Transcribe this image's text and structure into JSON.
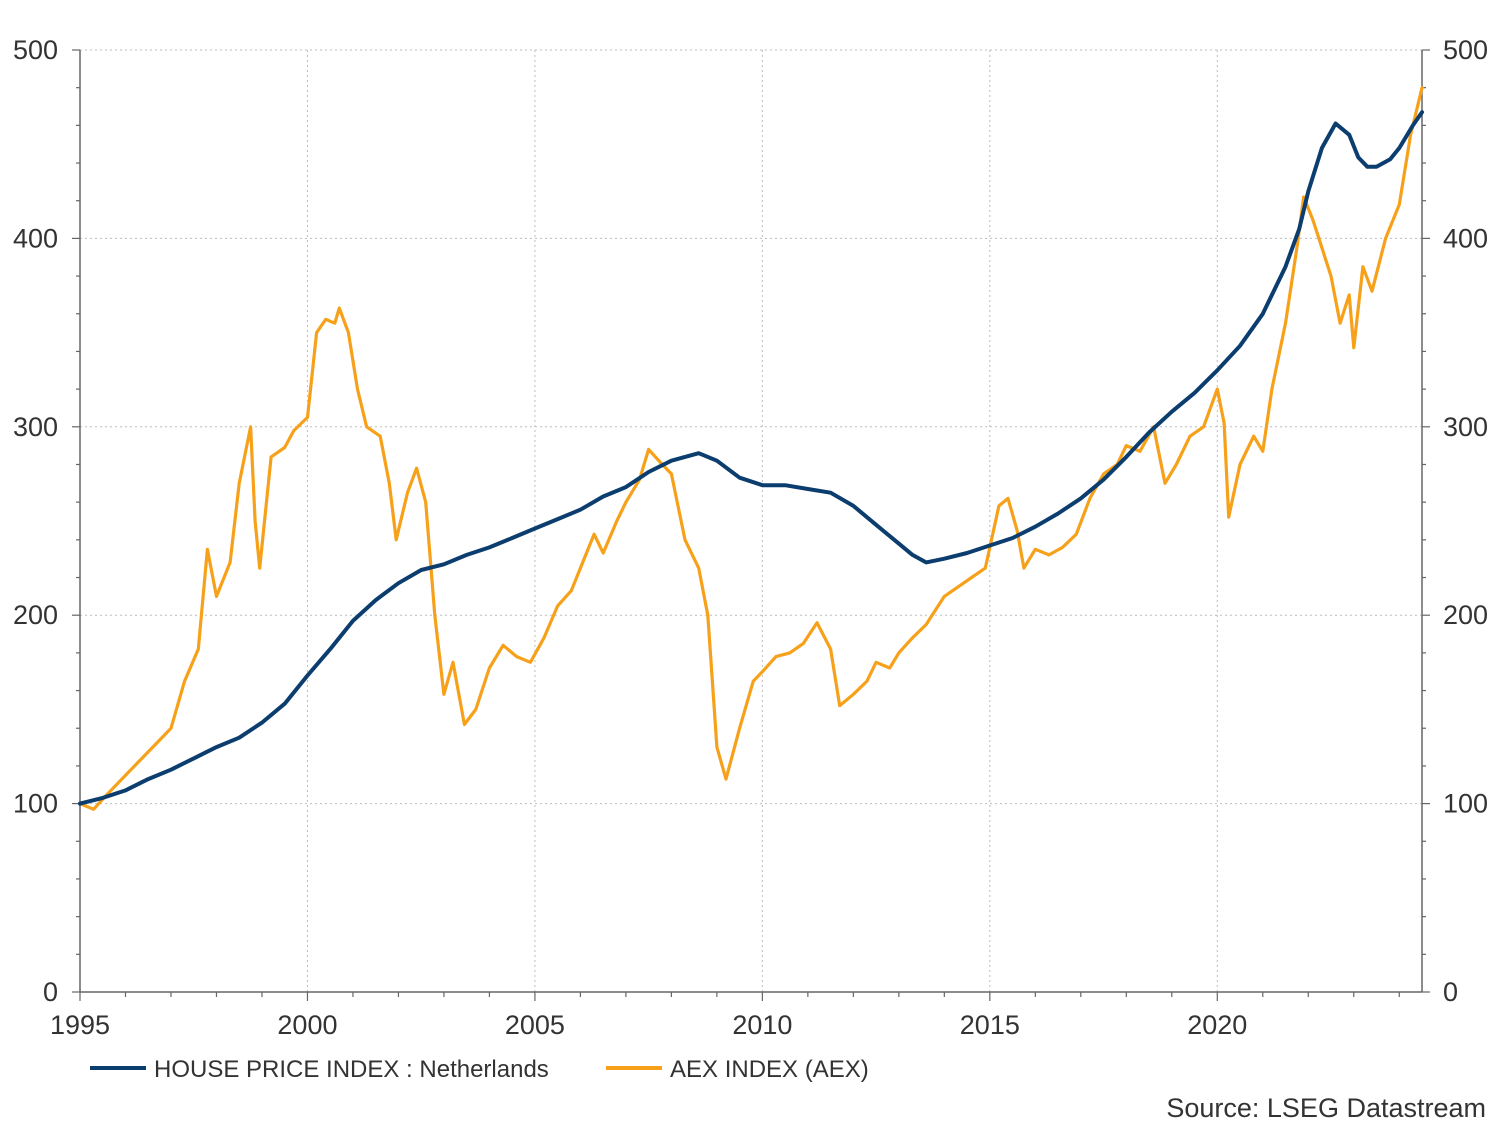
{
  "chart_data": {
    "type": "line",
    "xlim": [
      1995,
      2024.5
    ],
    "ylim": [
      0,
      500
    ],
    "x_ticks": [
      1995,
      2000,
      2005,
      2010,
      2015,
      2020
    ],
    "x_tick_labels": [
      "1995",
      "2000",
      "2005",
      "2010",
      "2015",
      "2020"
    ],
    "y_ticks": [
      0,
      100,
      200,
      300,
      400,
      500
    ],
    "y_tick_labels": [
      "0",
      "100",
      "200",
      "300",
      "400",
      "500"
    ],
    "y_axis_right": true,
    "grid": true,
    "legend_position": "bottom",
    "source": "Source: LSEG Datastream",
    "series": [
      {
        "name": "HOUSE PRICE INDEX : Netherlands",
        "color": "#0b3d6e",
        "points": [
          [
            1995.0,
            100
          ],
          [
            1995.5,
            103
          ],
          [
            1996.0,
            107
          ],
          [
            1996.5,
            113
          ],
          [
            1997.0,
            118
          ],
          [
            1997.5,
            124
          ],
          [
            1998.0,
            130
          ],
          [
            1998.5,
            135
          ],
          [
            1999.0,
            143
          ],
          [
            1999.5,
            153
          ],
          [
            2000.0,
            168
          ],
          [
            2000.5,
            182
          ],
          [
            2001.0,
            197
          ],
          [
            2001.5,
            208
          ],
          [
            2002.0,
            217
          ],
          [
            2002.5,
            224
          ],
          [
            2003.0,
            227
          ],
          [
            2003.5,
            232
          ],
          [
            2004.0,
            236
          ],
          [
            2004.5,
            241
          ],
          [
            2005.0,
            246
          ],
          [
            2005.5,
            251
          ],
          [
            2006.0,
            256
          ],
          [
            2006.5,
            263
          ],
          [
            2007.0,
            268
          ],
          [
            2007.5,
            276
          ],
          [
            2008.0,
            282
          ],
          [
            2008.6,
            286
          ],
          [
            2009.0,
            282
          ],
          [
            2009.5,
            273
          ],
          [
            2010.0,
            269
          ],
          [
            2010.5,
            269
          ],
          [
            2011.0,
            267
          ],
          [
            2011.5,
            265
          ],
          [
            2012.0,
            258
          ],
          [
            2012.5,
            248
          ],
          [
            2013.0,
            238
          ],
          [
            2013.3,
            232
          ],
          [
            2013.6,
            228
          ],
          [
            2014.0,
            230
          ],
          [
            2014.5,
            233
          ],
          [
            2015.0,
            237
          ],
          [
            2015.5,
            241
          ],
          [
            2016.0,
            247
          ],
          [
            2016.5,
            254
          ],
          [
            2017.0,
            262
          ],
          [
            2017.5,
            272
          ],
          [
            2018.0,
            284
          ],
          [
            2018.5,
            297
          ],
          [
            2019.0,
            308
          ],
          [
            2019.5,
            318
          ],
          [
            2020.0,
            330
          ],
          [
            2020.5,
            343
          ],
          [
            2021.0,
            360
          ],
          [
            2021.5,
            385
          ],
          [
            2021.8,
            405
          ],
          [
            2022.0,
            425
          ],
          [
            2022.3,
            448
          ],
          [
            2022.6,
            461
          ],
          [
            2022.9,
            455
          ],
          [
            2023.1,
            443
          ],
          [
            2023.3,
            438
          ],
          [
            2023.5,
            438
          ],
          [
            2023.8,
            442
          ],
          [
            2024.0,
            448
          ],
          [
            2024.3,
            460
          ],
          [
            2024.5,
            467
          ]
        ]
      },
      {
        "name": "AEX INDEX (AEX)",
        "color": "#f7a11a",
        "points": [
          [
            1995.0,
            100
          ],
          [
            1995.3,
            97
          ],
          [
            1995.6,
            105
          ],
          [
            1996.0,
            115
          ],
          [
            1996.4,
            125
          ],
          [
            1996.8,
            135
          ],
          [
            1997.0,
            140
          ],
          [
            1997.3,
            165
          ],
          [
            1997.6,
            182
          ],
          [
            1997.8,
            235
          ],
          [
            1998.0,
            210
          ],
          [
            1998.3,
            228
          ],
          [
            1998.5,
            270
          ],
          [
            1998.75,
            300
          ],
          [
            1998.85,
            250
          ],
          [
            1998.95,
            225
          ],
          [
            1999.2,
            284
          ],
          [
            1999.5,
            289
          ],
          [
            1999.7,
            298
          ],
          [
            2000.0,
            305
          ],
          [
            2000.2,
            350
          ],
          [
            2000.4,
            357
          ],
          [
            2000.6,
            355
          ],
          [
            2000.7,
            363
          ],
          [
            2000.9,
            350
          ],
          [
            2001.1,
            320
          ],
          [
            2001.3,
            300
          ],
          [
            2001.6,
            295
          ],
          [
            2001.8,
            270
          ],
          [
            2001.95,
            240
          ],
          [
            2002.2,
            265
          ],
          [
            2002.4,
            278
          ],
          [
            2002.6,
            260
          ],
          [
            2002.8,
            200
          ],
          [
            2003.0,
            158
          ],
          [
            2003.2,
            175
          ],
          [
            2003.45,
            142
          ],
          [
            2003.7,
            150
          ],
          [
            2004.0,
            172
          ],
          [
            2004.3,
            184
          ],
          [
            2004.6,
            178
          ],
          [
            2004.9,
            175
          ],
          [
            2005.2,
            188
          ],
          [
            2005.5,
            205
          ],
          [
            2005.8,
            213
          ],
          [
            2006.0,
            225
          ],
          [
            2006.3,
            243
          ],
          [
            2006.5,
            233
          ],
          [
            2006.8,
            250
          ],
          [
            2007.0,
            260
          ],
          [
            2007.3,
            272
          ],
          [
            2007.5,
            288
          ],
          [
            2007.8,
            280
          ],
          [
            2008.0,
            275
          ],
          [
            2008.3,
            240
          ],
          [
            2008.6,
            225
          ],
          [
            2008.8,
            200
          ],
          [
            2009.0,
            130
          ],
          [
            2009.2,
            113
          ],
          [
            2009.5,
            140
          ],
          [
            2009.8,
            165
          ],
          [
            2010.0,
            170
          ],
          [
            2010.3,
            178
          ],
          [
            2010.6,
            180
          ],
          [
            2010.9,
            185
          ],
          [
            2011.2,
            196
          ],
          [
            2011.5,
            182
          ],
          [
            2011.7,
            152
          ],
          [
            2012.0,
            158
          ],
          [
            2012.3,
            165
          ],
          [
            2012.5,
            175
          ],
          [
            2012.8,
            172
          ],
          [
            2013.0,
            180
          ],
          [
            2013.3,
            188
          ],
          [
            2013.6,
            195
          ],
          [
            2014.0,
            210
          ],
          [
            2014.3,
            215
          ],
          [
            2014.6,
            220
          ],
          [
            2014.9,
            225
          ],
          [
            2015.2,
            258
          ],
          [
            2015.4,
            262
          ],
          [
            2015.6,
            245
          ],
          [
            2015.75,
            225
          ],
          [
            2016.0,
            235
          ],
          [
            2016.3,
            232
          ],
          [
            2016.6,
            236
          ],
          [
            2016.9,
            243
          ],
          [
            2017.2,
            262
          ],
          [
            2017.5,
            275
          ],
          [
            2017.8,
            280
          ],
          [
            2018.0,
            290
          ],
          [
            2018.3,
            287
          ],
          [
            2018.6,
            300
          ],
          [
            2018.85,
            270
          ],
          [
            2019.1,
            280
          ],
          [
            2019.4,
            295
          ],
          [
            2019.7,
            300
          ],
          [
            2020.0,
            320
          ],
          [
            2020.15,
            302
          ],
          [
            2020.25,
            252
          ],
          [
            2020.5,
            280
          ],
          [
            2020.8,
            295
          ],
          [
            2021.0,
            287
          ],
          [
            2021.2,
            320
          ],
          [
            2021.5,
            355
          ],
          [
            2021.75,
            395
          ],
          [
            2021.9,
            422
          ],
          [
            2022.1,
            410
          ],
          [
            2022.3,
            395
          ],
          [
            2022.5,
            380
          ],
          [
            2022.7,
            355
          ],
          [
            2022.9,
            370
          ],
          [
            2023.0,
            342
          ],
          [
            2023.2,
            385
          ],
          [
            2023.4,
            372
          ],
          [
            2023.7,
            400
          ],
          [
            2024.0,
            418
          ],
          [
            2024.25,
            455
          ],
          [
            2024.4,
            470
          ],
          [
            2024.5,
            480
          ]
        ]
      }
    ]
  }
}
